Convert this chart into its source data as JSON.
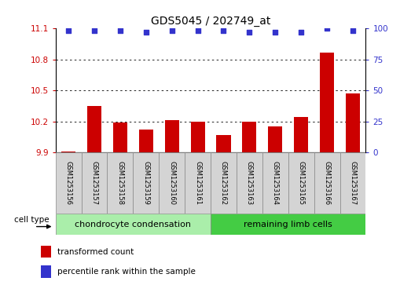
{
  "title": "GDS5045 / 202749_at",
  "samples": [
    "GSM1253156",
    "GSM1253157",
    "GSM1253158",
    "GSM1253159",
    "GSM1253160",
    "GSM1253161",
    "GSM1253162",
    "GSM1253163",
    "GSM1253164",
    "GSM1253165",
    "GSM1253166",
    "GSM1253167"
  ],
  "bar_values": [
    9.91,
    10.35,
    10.19,
    10.12,
    10.21,
    10.2,
    10.07,
    10.2,
    10.15,
    10.24,
    10.87,
    10.47
  ],
  "percentile_values": [
    98,
    98,
    98,
    97,
    98,
    98,
    98,
    97,
    97,
    97,
    100,
    98
  ],
  "ylim_left": [
    9.9,
    11.1
  ],
  "ylim_right": [
    0,
    100
  ],
  "yticks_left": [
    9.9,
    10.2,
    10.5,
    10.8,
    11.1
  ],
  "yticks_right": [
    0,
    25,
    50,
    75,
    100
  ],
  "bar_color": "#cc0000",
  "dot_color": "#3333cc",
  "grid_color": "#000000",
  "cell_type_groups": [
    {
      "label": "chondrocyte condensation",
      "start": 0,
      "end": 5,
      "color": "#aaeeaa"
    },
    {
      "label": "remaining limb cells",
      "start": 6,
      "end": 11,
      "color": "#44cc44"
    }
  ],
  "cell_type_label": "cell type",
  "legend_bar_label": "transformed count",
  "legend_dot_label": "percentile rank within the sample",
  "bar_width": 0.55,
  "tick_label_color_left": "#cc0000",
  "tick_label_color_right": "#3333cc",
  "grid_yticks": [
    10.2,
    10.5,
    10.8
  ],
  "sample_box_color": "#d4d4d4",
  "sample_box_edge": "#888888"
}
